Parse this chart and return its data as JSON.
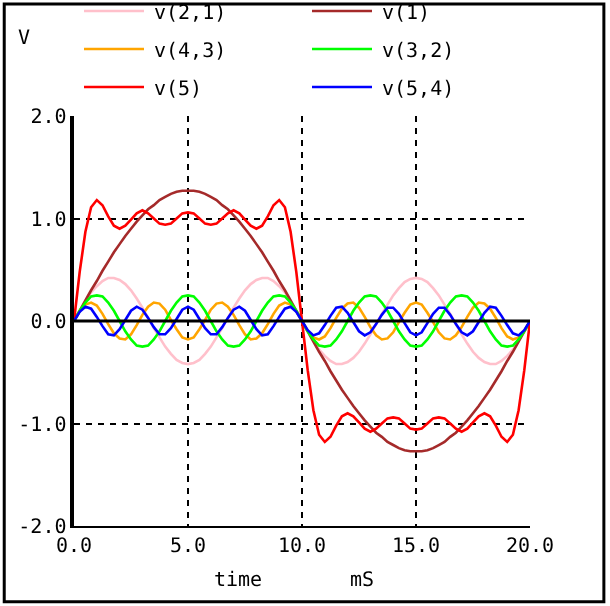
{
  "chart_data": {
    "type": "line",
    "ylabel": "V",
    "xlabel": "time",
    "annotations": [
      "mS"
    ],
    "x": [
      0,
      0.25,
      0.5,
      0.75,
      1,
      1.25,
      1.5,
      1.75,
      2,
      2.25,
      2.5,
      2.75,
      3,
      3.25,
      3.5,
      3.75,
      4,
      4.25,
      4.5,
      4.75,
      5,
      5.25,
      5.5,
      5.75,
      6,
      6.25,
      6.5,
      6.75,
      7,
      7.25,
      7.5,
      7.75,
      8,
      8.25,
      8.5,
      8.75,
      9,
      9.25,
      9.5,
      9.75,
      10,
      10.25,
      10.5,
      10.75,
      11,
      11.25,
      11.5,
      11.75,
      12,
      12.25,
      12.5,
      12.75,
      13,
      13.25,
      13.5,
      13.75,
      14,
      14.25,
      14.5,
      14.75,
      15,
      15.25,
      15.5,
      15.75,
      16,
      16.25,
      16.5,
      16.75,
      17,
      17.25,
      17.5,
      17.75,
      18,
      18.25,
      18.5,
      18.75,
      19,
      19.25,
      19.5,
      19.75,
      20
    ],
    "series": [
      {
        "name": "v(2,1)",
        "color": "#ffc0cb",
        "values": [
          0,
          0.1,
          0.19,
          0.28,
          0.34,
          0.39,
          0.42,
          0.42,
          0.4,
          0.36,
          0.3,
          0.22,
          0.13,
          0.03,
          -0.07,
          -0.16,
          -0.25,
          -0.32,
          -0.38,
          -0.41,
          -0.42,
          -0.41,
          -0.38,
          -0.32,
          -0.25,
          -0.16,
          -0.07,
          0.03,
          0.13,
          0.22,
          0.3,
          0.36,
          0.4,
          0.42,
          0.42,
          0.39,
          0.34,
          0.28,
          0.19,
          0.1,
          0,
          -0.1,
          -0.19,
          -0.28,
          -0.34,
          -0.39,
          -0.42,
          -0.42,
          -0.4,
          -0.36,
          -0.3,
          -0.22,
          -0.13,
          -0.03,
          0.07,
          0.16,
          0.25,
          0.32,
          0.38,
          0.41,
          0.42,
          0.41,
          0.38,
          0.32,
          0.25,
          0.16,
          0.07,
          -0.03,
          -0.13,
          -0.22,
          -0.3,
          -0.36,
          -0.4,
          -0.42,
          -0.42,
          -0.39,
          -0.34,
          -0.28,
          -0.19,
          -0.1,
          0
        ]
      },
      {
        "name": "v(1)",
        "color": "#a52a2a",
        "values": [
          0,
          0.1,
          0.2,
          0.3,
          0.39,
          0.49,
          0.58,
          0.67,
          0.75,
          0.83,
          0.9,
          0.97,
          1.03,
          1.09,
          1.13,
          1.18,
          1.21,
          1.24,
          1.26,
          1.27,
          1.27,
          1.27,
          1.26,
          1.24,
          1.21,
          1.18,
          1.13,
          1.09,
          1.03,
          0.97,
          0.9,
          0.83,
          0.75,
          0.67,
          0.58,
          0.49,
          0.39,
          0.3,
          0.2,
          0.1,
          0,
          -0.1,
          -0.2,
          -0.3,
          -0.39,
          -0.49,
          -0.58,
          -0.67,
          -0.75,
          -0.83,
          -0.9,
          -0.97,
          -1.03,
          -1.09,
          -1.13,
          -1.18,
          -1.21,
          -1.24,
          -1.26,
          -1.27,
          -1.27,
          -1.27,
          -1.26,
          -1.24,
          -1.21,
          -1.18,
          -1.13,
          -1.09,
          -1.03,
          -0.97,
          -0.9,
          -0.83,
          -0.75,
          -0.67,
          -0.58,
          -0.49,
          -0.39,
          -0.3,
          -0.2,
          -0.1,
          0
        ]
      },
      {
        "name": "v(4,3)",
        "color": "#ffa500",
        "values": [
          0,
          0.1,
          0.16,
          0.18,
          0.15,
          0.07,
          -0.03,
          -0.12,
          -0.17,
          -0.18,
          -0.13,
          -0.04,
          0.06,
          0.14,
          0.18,
          0.17,
          0.11,
          0.01,
          -0.08,
          -0.16,
          -0.18,
          -0.16,
          -0.08,
          0.01,
          0.11,
          0.17,
          0.18,
          0.14,
          0.06,
          -0.04,
          -0.13,
          -0.18,
          -0.17,
          -0.12,
          -0.03,
          0.07,
          0.15,
          0.18,
          0.16,
          0.1,
          0,
          -0.1,
          -0.16,
          -0.18,
          -0.15,
          -0.07,
          0.03,
          0.12,
          0.17,
          0.18,
          0.13,
          0.04,
          -0.06,
          -0.14,
          -0.18,
          -0.17,
          -0.11,
          -0.01,
          0.08,
          0.16,
          0.18,
          0.16,
          0.08,
          -0.01,
          -0.11,
          -0.17,
          -0.18,
          -0.14,
          -0.06,
          0.04,
          0.13,
          0.18,
          0.17,
          0.12,
          0.03,
          -0.07,
          -0.15,
          -0.18,
          -0.16,
          -0.1,
          0
        ]
      },
      {
        "name": "v(3,2)",
        "color": "#00ff00",
        "values": [
          0,
          0.1,
          0.18,
          0.24,
          0.25,
          0.24,
          0.18,
          0.1,
          0,
          -0.1,
          -0.18,
          -0.24,
          -0.25,
          -0.24,
          -0.18,
          -0.1,
          0,
          0.1,
          0.18,
          0.24,
          0.25,
          0.24,
          0.18,
          0.1,
          0,
          -0.1,
          -0.18,
          -0.24,
          -0.25,
          -0.24,
          -0.18,
          -0.1,
          0,
          0.1,
          0.18,
          0.24,
          0.25,
          0.24,
          0.18,
          0.1,
          0,
          -0.1,
          -0.18,
          -0.24,
          -0.25,
          -0.24,
          -0.18,
          -0.1,
          0,
          0.1,
          0.18,
          0.24,
          0.25,
          0.24,
          0.18,
          0.1,
          0,
          -0.1,
          -0.18,
          -0.24,
          -0.25,
          -0.24,
          -0.18,
          -0.1,
          0,
          0.1,
          0.18,
          0.24,
          0.25,
          0.24,
          0.18,
          0.1,
          0,
          -0.1,
          -0.18,
          -0.24,
          -0.25,
          -0.24,
          -0.18,
          -0.1,
          0
        ]
      },
      {
        "name": "v(5)",
        "color": "#ff0000",
        "values": [
          0,
          0.48,
          0.87,
          1.11,
          1.18,
          1.13,
          1.02,
          0.93,
          0.9,
          0.93,
          0.99,
          1.05,
          1.08,
          1.05,
          1,
          0.95,
          0.94,
          0.95,
          1,
          1.05,
          1.06,
          1.05,
          1,
          0.95,
          0.94,
          0.95,
          1,
          1.05,
          1.08,
          1.05,
          0.99,
          0.93,
          0.9,
          0.93,
          1.02,
          1.13,
          1.18,
          1.11,
          0.87,
          0.48,
          0,
          -0.48,
          -0.87,
          -1.11,
          -1.18,
          -1.13,
          -1.02,
          -0.93,
          -0.9,
          -0.93,
          -0.99,
          -1.05,
          -1.08,
          -1.05,
          -1,
          -0.95,
          -0.94,
          -0.95,
          -1,
          -1.05,
          -1.06,
          -1.05,
          -1,
          -0.95,
          -0.94,
          -0.95,
          -1,
          -1.05,
          -1.08,
          -1.05,
          -0.99,
          -0.93,
          -0.9,
          -0.93,
          -1.02,
          -1.13,
          -1.18,
          -1.11,
          -0.87,
          -0.48,
          0
        ]
      },
      {
        "name": "v(5,4)",
        "color": "#0000ff",
        "values": [
          0,
          0.09,
          0.14,
          0.12,
          0.04,
          -0.05,
          -0.13,
          -0.14,
          -0.08,
          0.01,
          0.1,
          0.14,
          0.11,
          0.03,
          -0.06,
          -0.13,
          -0.13,
          -0.07,
          0.02,
          0.11,
          0.14,
          0.11,
          0.02,
          -0.07,
          -0.13,
          -0.13,
          -0.06,
          0.03,
          0.11,
          0.14,
          0.1,
          0.01,
          -0.08,
          -0.14,
          -0.13,
          -0.05,
          0.04,
          0.12,
          0.14,
          0.09,
          0,
          -0.09,
          -0.14,
          -0.12,
          -0.04,
          0.05,
          0.13,
          0.14,
          0.08,
          -0.01,
          -0.1,
          -0.14,
          -0.11,
          -0.03,
          0.06,
          0.13,
          0.13,
          0.07,
          -0.02,
          -0.11,
          -0.14,
          -0.11,
          -0.02,
          0.07,
          0.13,
          0.13,
          0.06,
          -0.03,
          -0.11,
          -0.14,
          -0.1,
          -0.01,
          0.08,
          0.14,
          0.13,
          0.05,
          -0.04,
          -0.12,
          -0.14,
          -0.09,
          0
        ]
      }
    ],
    "xlim": [
      0,
      20
    ],
    "xticks": [
      {
        "value": 0,
        "label": "0.0"
      },
      {
        "value": 5,
        "label": "5.0"
      },
      {
        "value": 10,
        "label": "10.0"
      },
      {
        "value": 15,
        "label": "15.0"
      },
      {
        "value": 20,
        "label": "20.0"
      }
    ],
    "ylim": [
      -2,
      2
    ],
    "yticks": [
      {
        "value": -2,
        "label": "-2.0"
      },
      {
        "value": -1,
        "label": "-1.0"
      },
      {
        "value": 0,
        "label": "0.0"
      },
      {
        "value": 1,
        "label": "1.0"
      },
      {
        "value": 2,
        "label": "2.0"
      }
    ],
    "ref_lines": [
      {
        "axis": "y",
        "value": 0,
        "color": "#000000"
      }
    ],
    "grid": true,
    "legend": "top",
    "line_style": "solid"
  }
}
